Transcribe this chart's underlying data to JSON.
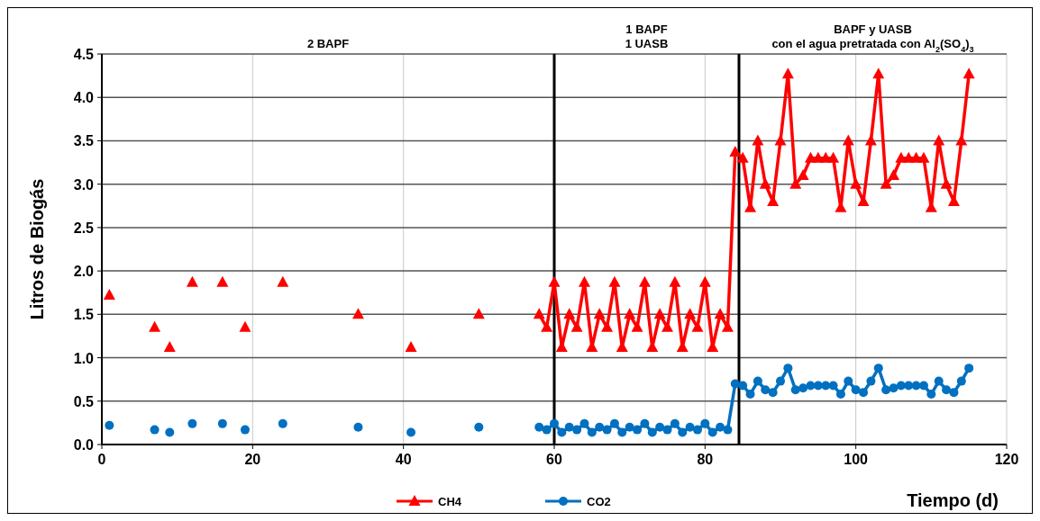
{
  "chart_data": {
    "type": "line",
    "xlabel": "Tiempo (d)",
    "ylabel": "Litros de Biogás",
    "xlim": [
      0,
      120
    ],
    "xticks": [
      0,
      20,
      40,
      60,
      80,
      100,
      120
    ],
    "ylim": [
      0,
      4.5
    ],
    "yticks": [
      {
        "value": 0,
        "label": "0.0"
      },
      {
        "value": 0.5,
        "label": "0.5"
      },
      {
        "value": 1,
        "label": "1.0"
      },
      {
        "value": 1.5,
        "label": "1.5"
      },
      {
        "value": 2,
        "label": "2.0"
      },
      {
        "value": 2.5,
        "label": "2.5"
      },
      {
        "value": 3,
        "label": "3.0"
      },
      {
        "value": 3.5,
        "label": "3.5"
      },
      {
        "value": 4,
        "label": "4.0"
      },
      {
        "value": 4.5,
        "label": "4.5"
      }
    ],
    "grid": true,
    "legend": "bottom",
    "line_style": "solid",
    "ref_lines": [
      {
        "axis": "x",
        "value": 60,
        "color": "#000000"
      },
      {
        "axis": "x",
        "value": 84.5,
        "color": "#000000"
      }
    ],
    "annotations": [
      "2  BAPF",
      "1 BAPF\n1 UASB",
      "BAPF y UASB\ncon el agua pretratada con Al$_{2}$(SO$_{4}$)$_{3}$"
    ],
    "series": [
      {
        "name": "CH4",
        "color": "#ff0000",
        "marker": "triangle",
        "x": [
          1,
          2,
          7,
          8,
          9,
          10,
          12,
          13,
          16,
          17,
          19,
          20,
          24,
          25,
          34,
          35,
          41,
          42,
          50,
          51,
          58,
          59,
          60,
          61,
          62,
          63,
          64,
          65,
          66,
          67,
          68,
          69,
          70,
          71,
          72,
          73,
          74,
          75,
          76,
          77,
          78,
          79,
          80,
          81,
          82,
          83,
          84,
          85,
          86,
          87,
          88,
          89,
          90,
          91,
          92,
          93,
          94,
          95,
          96,
          97,
          98,
          99,
          100,
          101,
          102,
          103,
          104,
          105,
          106,
          107,
          108,
          109,
          110,
          111,
          112,
          113,
          114,
          115
        ],
        "values": [
          1.72,
          null,
          1.35,
          null,
          1.12,
          null,
          1.87,
          null,
          1.87,
          null,
          1.35,
          null,
          1.87,
          null,
          1.5,
          null,
          1.12,
          null,
          1.5,
          null,
          1.5,
          1.35,
          1.87,
          1.12,
          1.5,
          1.35,
          1.87,
          1.12,
          1.5,
          1.35,
          1.87,
          1.12,
          1.5,
          1.35,
          1.87,
          1.12,
          1.5,
          1.35,
          1.87,
          1.12,
          1.5,
          1.35,
          1.87,
          1.12,
          1.5,
          1.35,
          3.37,
          3.3,
          2.73,
          3.5,
          3.0,
          2.8,
          3.5,
          4.27,
          3.0,
          3.1,
          3.3,
          3.3,
          3.3,
          3.3,
          2.73,
          3.5,
          3.0,
          2.8,
          3.5,
          4.27,
          3.0,
          3.1,
          3.3,
          3.3,
          3.3,
          3.3,
          2.73,
          3.5,
          3.0,
          2.8,
          3.5,
          4.27
        ]
      },
      {
        "name": "CO2",
        "color": "#0070c0",
        "marker": "circle",
        "x": [
          1,
          2,
          7,
          8,
          9,
          10,
          12,
          13,
          16,
          17,
          19,
          20,
          24,
          25,
          34,
          35,
          41,
          42,
          50,
          51,
          58,
          59,
          60,
          61,
          62,
          63,
          64,
          65,
          66,
          67,
          68,
          69,
          70,
          71,
          72,
          73,
          74,
          75,
          76,
          77,
          78,
          79,
          80,
          81,
          82,
          83,
          84,
          85,
          86,
          87,
          88,
          89,
          90,
          91,
          92,
          93,
          94,
          95,
          96,
          97,
          98,
          99,
          100,
          101,
          102,
          103,
          104,
          105,
          106,
          107,
          108,
          109,
          110,
          111,
          112,
          113,
          114,
          115
        ],
        "values": [
          0.22,
          null,
          0.17,
          null,
          0.14,
          null,
          0.24,
          null,
          0.24,
          null,
          0.17,
          null,
          0.24,
          null,
          0.2,
          null,
          0.14,
          null,
          0.2,
          null,
          0.2,
          0.17,
          0.24,
          0.14,
          0.2,
          0.17,
          0.24,
          0.14,
          0.2,
          0.17,
          0.24,
          0.14,
          0.2,
          0.17,
          0.24,
          0.14,
          0.2,
          0.17,
          0.24,
          0.14,
          0.2,
          0.17,
          0.24,
          0.14,
          0.2,
          0.17,
          0.7,
          0.68,
          0.58,
          0.73,
          0.63,
          0.6,
          0.73,
          0.88,
          0.63,
          0.65,
          0.68,
          0.68,
          0.68,
          0.68,
          0.58,
          0.73,
          0.63,
          0.6,
          0.73,
          0.88,
          0.63,
          0.65,
          0.68,
          0.68,
          0.68,
          0.68,
          0.58,
          0.73,
          0.63,
          0.6,
          0.73,
          0.88
        ]
      }
    ]
  }
}
